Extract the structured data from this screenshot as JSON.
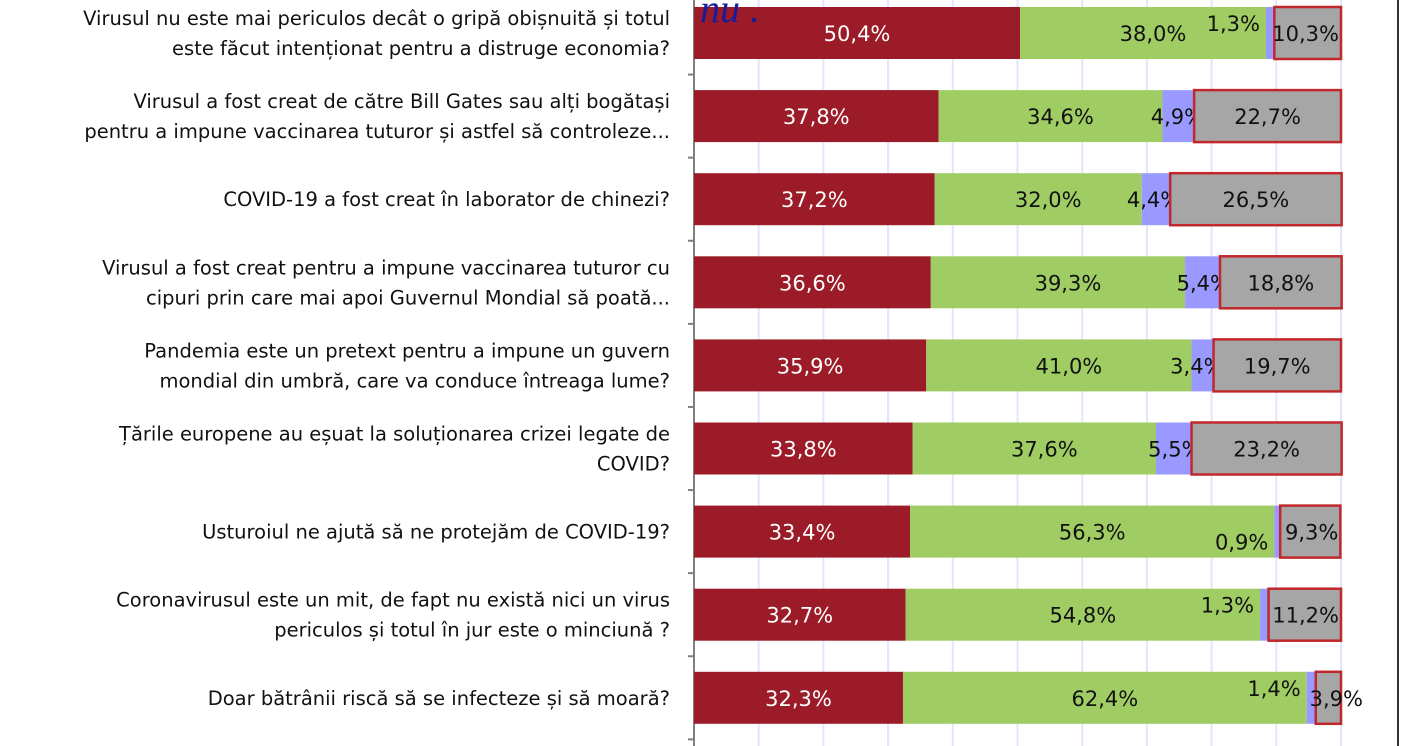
{
  "chart_data": {
    "type": "bar",
    "orientation": "horizontal",
    "stacked": true,
    "title": "",
    "xlabel": "",
    "ylabel": "",
    "xlim": [
      0,
      100
    ],
    "grid": true,
    "legend": "none",
    "annotation": "nu .",
    "categories": [
      [
        "Virusul nu este mai periculos decât o gripă obișnuită și totul",
        "este făcut intenționat pentru a distruge economia?"
      ],
      [
        "Virusul a fost creat de către Bill Gates sau alți bogătași",
        "pentru a impune vaccinarea tuturor și astfel să controleze..."
      ],
      [
        "COVID-19 a fost creat în laborator de chinezi?"
      ],
      [
        "Virusul a fost creat pentru a impune vaccinarea tuturor cu",
        "cipuri prin care mai apoi Guvernul Mondial să poată..."
      ],
      [
        "Pandemia este un pretext pentru a impune un guvern",
        "mondial din umbră, care va conduce întreaga lume?"
      ],
      [
        "Țările europene au eșuat la soluționarea crizei legate de",
        "COVID?"
      ],
      [
        "Usturoiul ne ajută să ne protejăm de COVID-19?"
      ],
      [
        "Coronavirusul este un mit, de fapt nu există nici un virus",
        "periculos și totul în jur este o minciună ?"
      ],
      [
        "Doar bătrânii riscă să se infecteze și să moară?"
      ]
    ],
    "series": [
      {
        "name": "series1",
        "color": "#9b1c28",
        "label_color": "#ffffff",
        "values": [
          50.4,
          37.8,
          37.2,
          36.6,
          35.9,
          33.8,
          33.4,
          32.7,
          32.3
        ],
        "labels": [
          "50,4%",
          "37,8%",
          "37,2%",
          "36,6%",
          "35,9%",
          "33,8%",
          "33,4%",
          "32,7%",
          "32,3%"
        ]
      },
      {
        "name": "series2",
        "color": "#a0cd63",
        "label_color": "#111111",
        "values": [
          38.0,
          34.6,
          32.0,
          39.3,
          41.0,
          37.6,
          56.3,
          54.8,
          62.4
        ],
        "labels": [
          "38,0%",
          "34,6%",
          "32,0%",
          "39,3%",
          "41,0%",
          "37,6%",
          "56,3%",
          "54,8%",
          "62,4%"
        ]
      },
      {
        "name": "series3",
        "color": "#9999ff",
        "label_color": "#111111",
        "values": [
          1.3,
          4.9,
          4.4,
          5.4,
          3.4,
          5.5,
          0.9,
          1.3,
          1.4
        ],
        "labels": [
          "1,3%",
          "4,9%",
          "4,4%",
          "5,4%",
          "3,4%",
          "5,5%",
          "0,9%",
          "1,3%",
          "1,4%"
        ]
      },
      {
        "name": "series4",
        "color": "#a6a6a6",
        "label_color": "#111111",
        "outline": "#c0282b",
        "values": [
          10.3,
          22.7,
          26.5,
          18.8,
          19.7,
          23.2,
          9.3,
          11.2,
          3.9
        ],
        "labels": [
          "10,3%",
          "22,7%",
          "26,5%",
          "18,8%",
          "19,7%",
          "23,2%",
          "9,3%",
          "11,2%",
          "3,9%"
        ]
      }
    ]
  }
}
